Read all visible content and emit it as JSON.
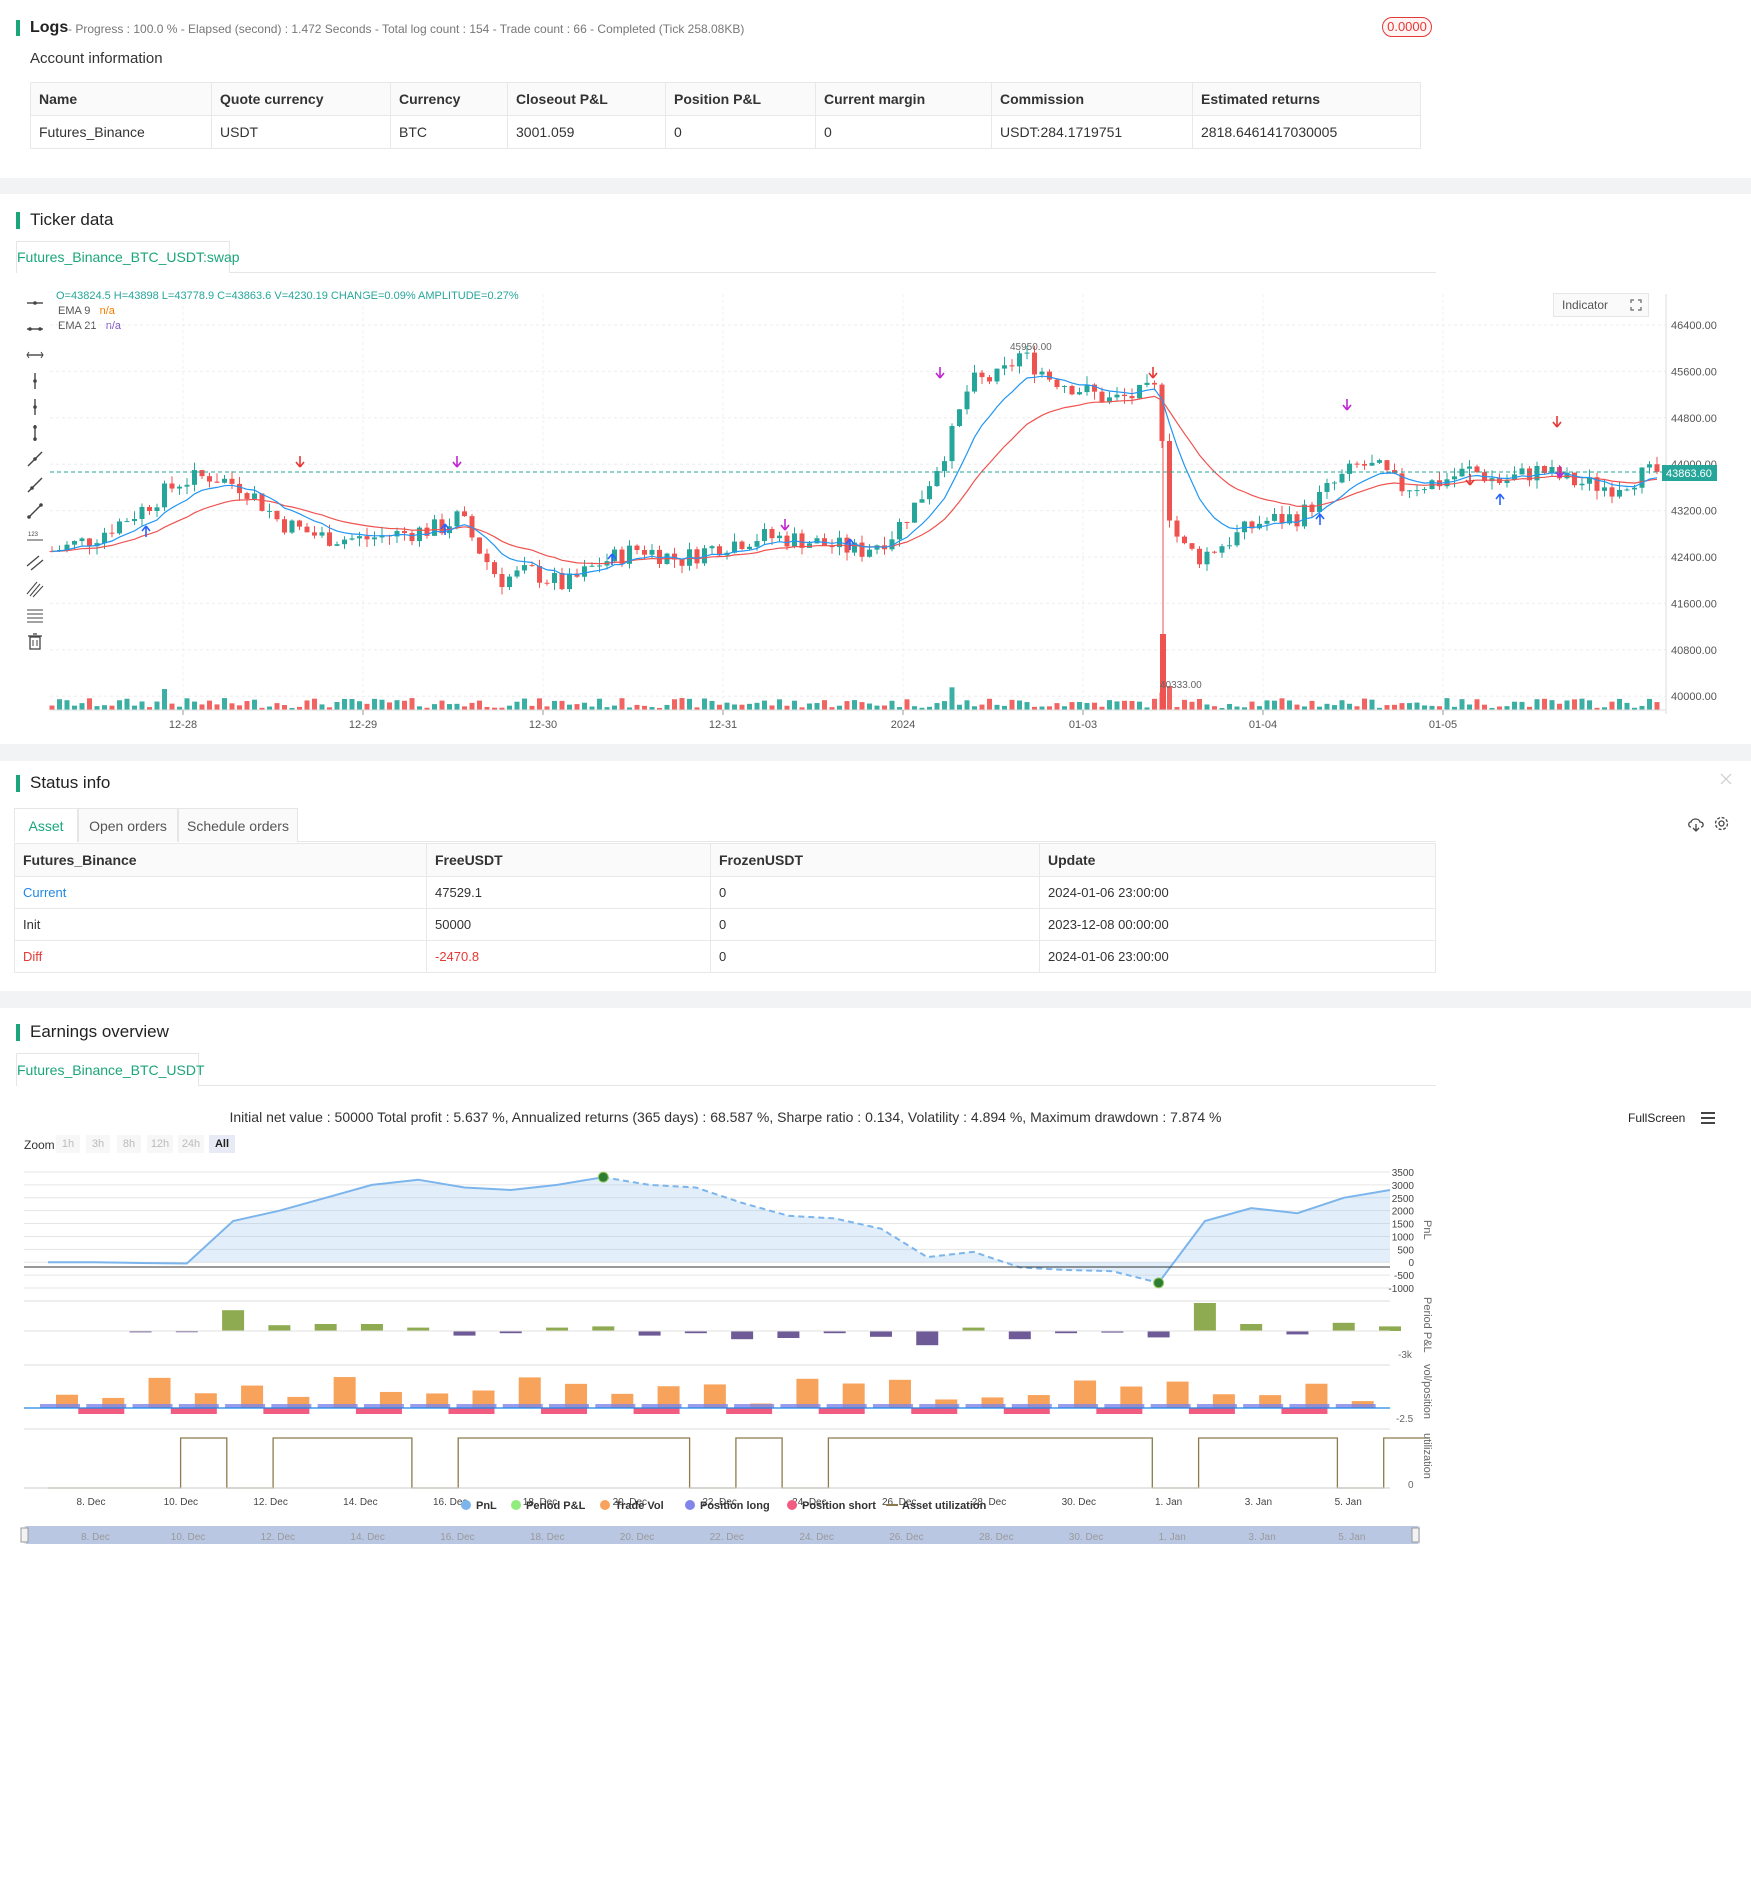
{
  "logs": {
    "title": "Logs",
    "status": "- Progress : 100.0 % - Elapsed (second) : 1.472  Seconds - Total log count : 154 - Trade count : 66 - Completed (Tick 258.08KB)",
    "badge": "0.0000"
  },
  "account": {
    "title": "Account information",
    "headers": [
      "Name",
      "Quote currency",
      "Currency",
      "Closeout P&L",
      "Position P&L",
      "Current margin",
      "Commission",
      "Estimated returns"
    ],
    "row": [
      "Futures_Binance",
      "USDT",
      "BTC",
      "3001.059",
      "0",
      "0",
      "USDT:284.1719751",
      "2818.6461417030005"
    ]
  },
  "ticker": {
    "title": "Ticker data",
    "tab": "Futures_Binance_BTC_USDT:swap",
    "ohlc": "O=43824.5 H=43898 L=43778.9 C=43863.6 V=4230.19 CHANGE=0.09% AMPLITUDE=0.27%",
    "ema9_label": "EMA 9",
    "ema9_value": "n/a",
    "ema21_label": "EMA 21",
    "ema21_value": "n/a",
    "indicator_btn": "Indicator",
    "current_price": "43863.60",
    "high_label": "45950.00",
    "low_label": "40333.00",
    "y_ticks": [
      "46400.00",
      "45600.00",
      "44800.00",
      "44000.00",
      "43200.00",
      "42400.00",
      "41600.00",
      "40800.00",
      "40000.00"
    ],
    "x_ticks": [
      "12-28",
      "12-29",
      "12-30",
      "12-31",
      "2024",
      "01-03",
      "01-04",
      "01-05"
    ],
    "colors": {
      "up": "#26a69a",
      "down": "#ef5350",
      "ema9": "#2196f3",
      "ema21": "#ef5350",
      "signal_buy": "#2962ff",
      "signal_sell": "#e53935",
      "signal_close": "#c026d3"
    }
  },
  "status": {
    "title": "Status info",
    "tabs": [
      "Asset",
      "Open orders",
      "Schedule orders"
    ],
    "headers": [
      "Futures_Binance",
      "FreeUSDT",
      "FrozenUSDT",
      "Update"
    ],
    "rows": [
      [
        "Current",
        "47529.1",
        "0",
        "2024-01-06 23:00:00"
      ],
      [
        "Init",
        "50000",
        "0",
        "2023-12-08 00:00:00"
      ],
      [
        "Diff",
        "-2470.8",
        "0",
        "2024-01-06 23:00:00"
      ]
    ]
  },
  "earnings": {
    "title": "Earnings overview",
    "tab": "Futures_Binance_BTC_USDT",
    "summary": "Initial net value : 50000 Total profit : 5.637 %, Annualized returns (365 days) : 68.587 %, Sharpe ratio : 0.134, Volatility : 4.894 %, Maximum drawdown : 7.874 %",
    "fullscreen": "FullScreen",
    "zoom_label": "Zoom",
    "zoom_options": [
      "1h",
      "3h",
      "8h",
      "12h",
      "24h",
      "All"
    ],
    "pnl_ticks": [
      "3500",
      "3000",
      "2500",
      "2000",
      "1500",
      "1000",
      "500",
      "0",
      "-500",
      "-1000"
    ],
    "panel_labels": [
      "PnL",
      "Period P&L",
      "vol/position",
      "utilization"
    ],
    "period_tick": "-3k",
    "vol_tick": "-2.5",
    "util_tick": "0",
    "x_ticks": [
      "8. Dec",
      "10. Dec",
      "12. Dec",
      "14. Dec",
      "16. Dec",
      "18. Dec",
      "20. Dec",
      "22. Dec",
      "24. Dec",
      "26. Dec",
      "28. Dec",
      "30. Dec",
      "1. Jan",
      "3. Jan",
      "5. Jan"
    ],
    "legend": [
      "PnL",
      "Period P&L",
      "Trade Vol",
      "Position long",
      "Position short",
      "Asset utilization"
    ],
    "legend_colors": [
      "#7cb5ec",
      "#90ed7d",
      "#f7a35c",
      "#8085e9",
      "#f15c80",
      "#8d7b4d"
    ],
    "chart_data": {
      "type": "line",
      "x": [
        "8. Dec",
        "9. Dec",
        "10. Dec",
        "11. Dec",
        "12. Dec",
        "13. Dec",
        "14. Dec",
        "15. Dec",
        "16. Dec",
        "17. Dec",
        "18. Dec",
        "19. Dec",
        "20. Dec",
        "21. Dec",
        "22. Dec",
        "23. Dec",
        "24. Dec",
        "25. Dec",
        "26. Dec",
        "27. Dec",
        "28. Dec",
        "29. Dec",
        "30. Dec",
        "31. Dec",
        "1. Jan",
        "2. Jan",
        "3. Jan",
        "4. Jan",
        "5. Jan",
        "6. Jan"
      ],
      "series": [
        {
          "name": "PnL",
          "values": [
            0,
            0,
            -30,
            -50,
            1600,
            2000,
            2500,
            3000,
            3200,
            2900,
            2800,
            3000,
            3300,
            3000,
            2900,
            2300,
            1800,
            1700,
            1300,
            200,
            400,
            -200,
            -300,
            -350,
            -800,
            1600,
            2100,
            1900,
            2500,
            2800
          ]
        }
      ],
      "ylim": [
        -1000,
        3500
      ]
    }
  }
}
